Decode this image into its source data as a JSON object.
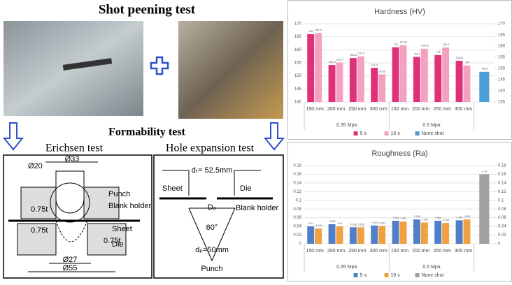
{
  "title": "Shot peening test",
  "formability_title": "Formability test",
  "erichsen": {
    "title": "Erichsen test",
    "d20": "Ø20",
    "d33": "Ø33",
    "punch": "Punch",
    "blank_holder": "Blank holder",
    "sheet": "Sheet",
    "die": "Die",
    "d27": "Ø27",
    "d55": "Ø55",
    "t1": "0.75t",
    "t2": "0.75t",
    "t3": "0.75t"
  },
  "hole": {
    "title": "Hole expansion test",
    "dt": "dₜ= 52.5mm",
    "sheet": "Sheet",
    "die": "Die",
    "d0": "D₀",
    "blank_holder": "Blank holder",
    "angle": "60°",
    "dp": "dₚ=50mm",
    "punch": "Punch"
  },
  "chart_data": [
    {
      "type": "bar",
      "title": "Hardness (HV)",
      "categories": [
        "150 mm",
        "200 mm",
        "250 mm",
        "300 mm",
        "150 mm",
        "200 mm",
        "250 mm",
        "300 mm",
        null
      ],
      "groups": [
        "0.35 Mpa",
        "0.5 Mpa"
      ],
      "series": [
        {
          "name": "5 s",
          "color": "#e0307a",
          "values": [
            166,
            154.17,
            156.83,
            153.11,
            161,
            157.3,
            158,
            155.81,
            null
          ]
        },
        {
          "name": "10 s",
          "color": "#f2a2c0",
          "values": [
            166.47,
            155.17,
            157.5,
            150.61,
            161.81,
            160.42,
            160.9,
            154,
            null
          ]
        },
        {
          "name": "None shot",
          "color": "#4a9fd6",
          "axis": "y2",
          "values": [
            null,
            null,
            null,
            null,
            null,
            null,
            null,
            null,
            148.5
          ]
        }
      ],
      "ylim": [
        140,
        170
      ],
      "yticks": [
        140,
        145,
        150,
        155,
        160,
        165,
        170
      ],
      "y2lim": [
        135,
        170
      ],
      "y2ticks": [
        135,
        140,
        145,
        150,
        155,
        160,
        165,
        170
      ]
    },
    {
      "type": "bar",
      "title": "Roughness (Ra)",
      "categories": [
        "150 mm",
        "200 mm",
        "250 mm",
        "300 mm",
        "150 mm",
        "200 mm",
        "250 mm",
        "300 mm",
        null
      ],
      "groups": [
        "0.35 Mpa",
        "0.5 Mpa"
      ],
      "series": [
        {
          "name": "5 s",
          "color": "#4f7fc8",
          "values": [
            0.04,
            0.045,
            0.038,
            0.042,
            0.053,
            0.056,
            0.053,
            0.054,
            null
          ]
        },
        {
          "name": "10 s",
          "color": "#f0a040",
          "values": [
            0.035,
            0.04,
            0.038,
            0.041,
            0.051,
            0.049,
            0.048,
            0.056,
            null
          ]
        },
        {
          "name": "None shot",
          "color": "#a0a0a0",
          "axis": "y2",
          "values": [
            null,
            null,
            null,
            null,
            null,
            null,
            null,
            null,
            0.16
          ]
        }
      ],
      "ylim": [
        0,
        0.18
      ],
      "yticks": [
        0,
        0.02,
        0.04,
        0.06,
        0.08,
        0.1,
        0.12,
        0.14,
        0.16,
        0.18
      ],
      "y2lim": [
        0,
        0.18
      ],
      "y2ticks": [
        0,
        0.02,
        0.04,
        0.06,
        0.08,
        0.1,
        0.12,
        0.14,
        0.16,
        0.18
      ]
    }
  ]
}
